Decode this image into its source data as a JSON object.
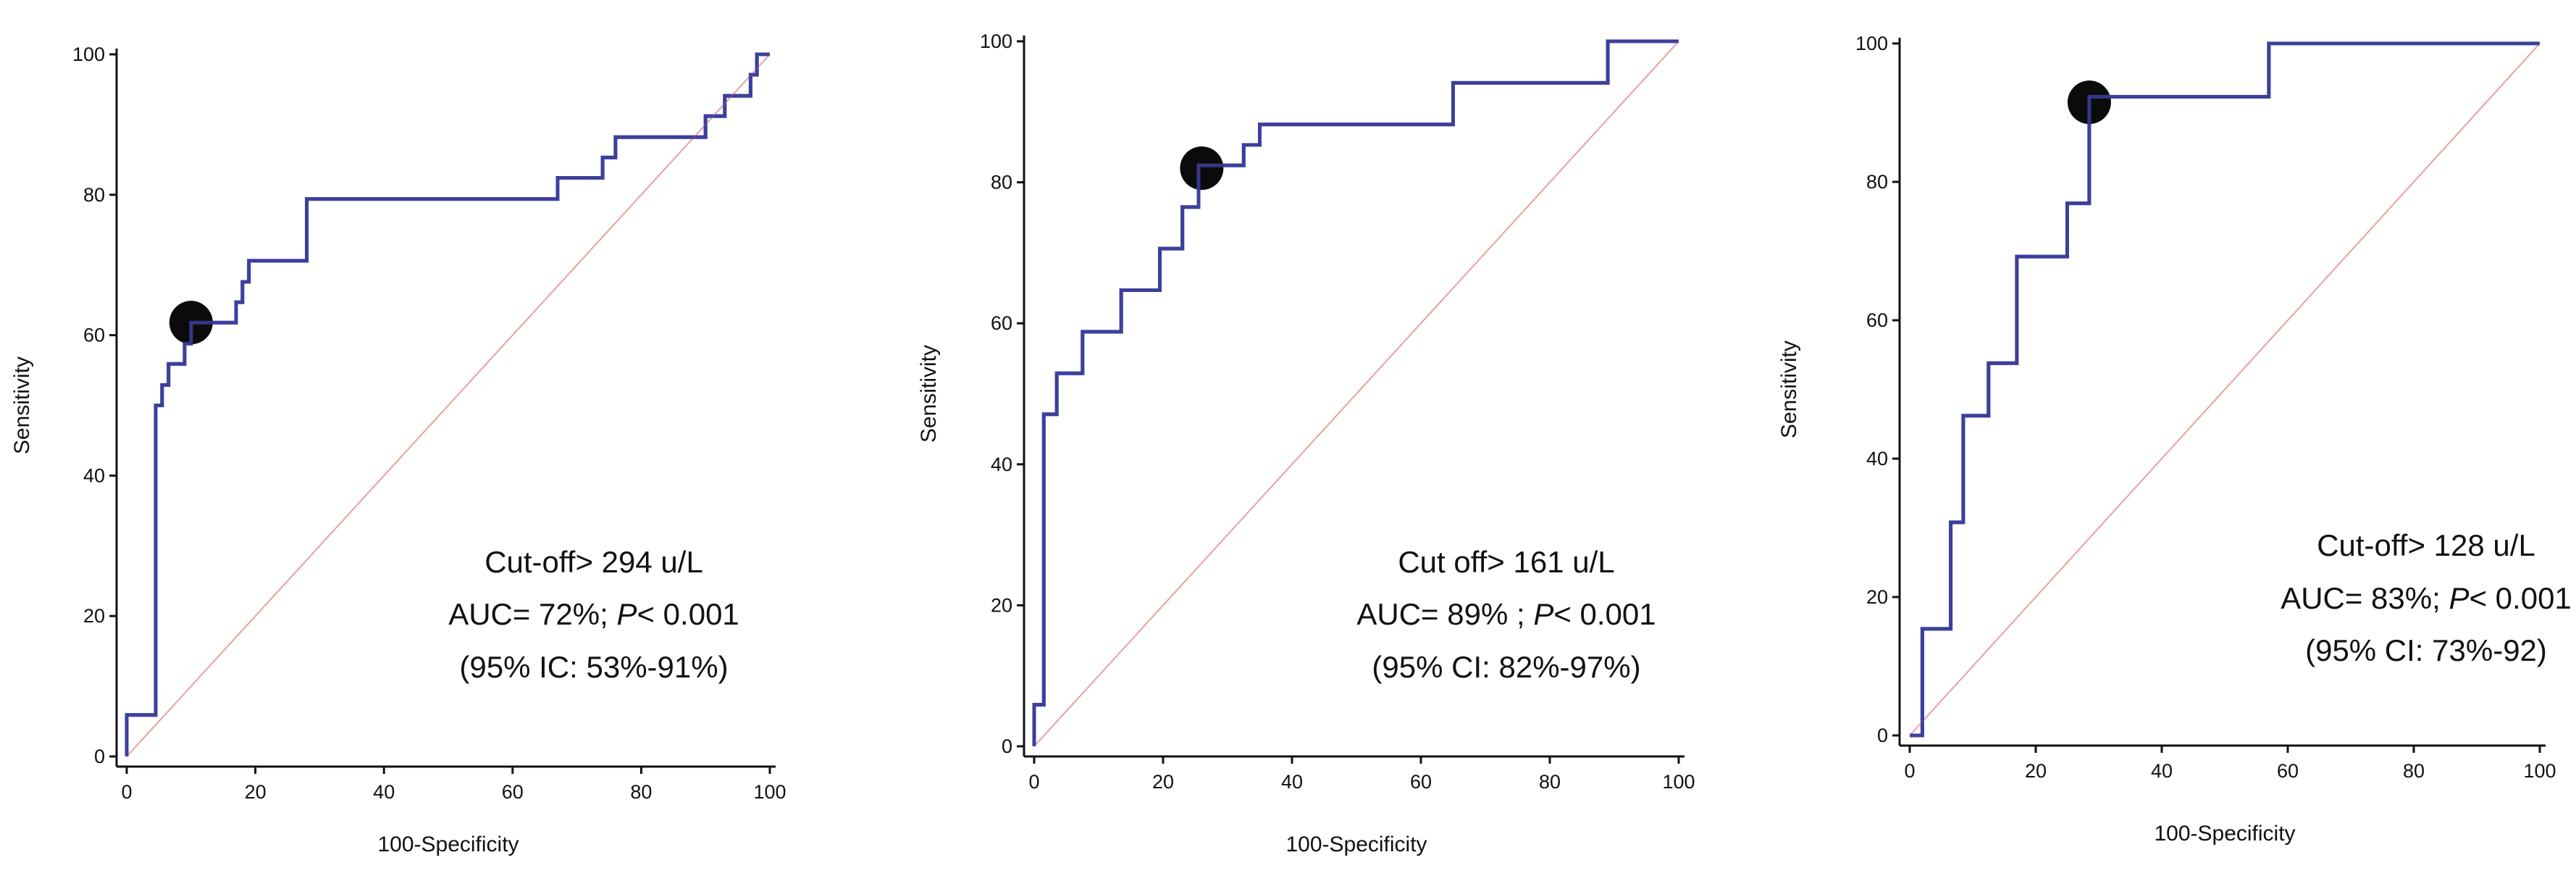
{
  "chart_data": [
    {
      "type": "line",
      "title": "",
      "xlabel": "100-Specificity",
      "ylabel": "Sensitivity",
      "xlim": [
        0,
        100
      ],
      "ylim": [
        0,
        100
      ],
      "x_ticks": [
        "0",
        "20",
        "40",
        "60",
        "80",
        "100"
      ],
      "y_ticks": [
        "0",
        "20",
        "40",
        "60",
        "80",
        "100"
      ],
      "grid": false,
      "series": [
        {
          "name": "ROC curve",
          "color": "#3d3f9c",
          "x": [
            0,
            0,
            4.5,
            4.5,
            5.5,
            5.5,
            6.5,
            6.5,
            9,
            9,
            10,
            10,
            17,
            17,
            18,
            18,
            19,
            19,
            28,
            28,
            67,
            67,
            74,
            74,
            76,
            76,
            90,
            90,
            93,
            93,
            97,
            97,
            98,
            98,
            99,
            99,
            100
          ],
          "y": [
            0,
            5.9,
            5.9,
            50,
            50,
            52.9,
            52.9,
            55.9,
            55.9,
            58.8,
            58.8,
            61.8,
            61.8,
            64.7,
            64.7,
            67.6,
            67.6,
            70.6,
            70.6,
            79.4,
            79.4,
            82.4,
            82.4,
            85.3,
            85.3,
            88.2,
            88.2,
            91.2,
            91.2,
            94.1,
            94.1,
            97.1,
            97.1,
            100,
            100,
            100,
            100
          ]
        },
        {
          "name": "Reference line",
          "color": "#e8a0a0",
          "x": [
            0,
            100
          ],
          "y": [
            0,
            100
          ]
        }
      ],
      "cutoff_point": {
        "x": 10,
        "y": 61.8
      },
      "annotations": [
        "Cut-off> 294 u/L",
        "AUC= 72%; ",
        "P",
        "< 0.001",
        "(95% IC: 53%-91%)"
      ]
    },
    {
      "type": "line",
      "title": "",
      "xlabel": "100-Specificity",
      "ylabel": "Sensitivity",
      "xlim": [
        0,
        100
      ],
      "ylim": [
        0,
        100
      ],
      "x_ticks": [
        "0",
        "20",
        "40",
        "60",
        "80",
        "100"
      ],
      "y_ticks": [
        "0",
        "20",
        "40",
        "60",
        "80",
        "100"
      ],
      "grid": false,
      "series": [
        {
          "name": "ROC curve",
          "color": "#3d3f9c",
          "x": [
            0,
            0,
            1.5,
            1.5,
            3.5,
            3.5,
            7.5,
            7.5,
            13.5,
            13.5,
            19.5,
            19.5,
            23,
            23,
            25.5,
            25.5,
            32.5,
            32.5,
            35,
            35,
            65,
            65,
            89,
            89,
            100
          ],
          "y": [
            0,
            5.9,
            5.9,
            47.1,
            47.1,
            52.9,
            52.9,
            58.8,
            58.8,
            64.7,
            64.7,
            70.6,
            70.6,
            76.5,
            76.5,
            82.4,
            82.4,
            85.3,
            85.3,
            88.2,
            88.2,
            94.1,
            94.1,
            100,
            100
          ]
        },
        {
          "name": "Reference line",
          "color": "#e8a0a0",
          "x": [
            0,
            100
          ],
          "y": [
            0,
            100
          ]
        }
      ],
      "cutoff_point": {
        "x": 26,
        "y": 82
      },
      "annotations": [
        "Cut off> 161 u/L",
        "AUC= 89% ; ",
        "P",
        "< 0.001",
        "(95% CI: 82%-97%)"
      ]
    },
    {
      "type": "line",
      "title": "",
      "xlabel": "100-Specificity",
      "ylabel": "Sensitivity",
      "xlim": [
        0,
        100
      ],
      "ylim": [
        0,
        100
      ],
      "x_ticks": [
        "0",
        "20",
        "40",
        "60",
        "80",
        "100"
      ],
      "y_ticks": [
        "0",
        "20",
        "40",
        "60",
        "80",
        "100"
      ],
      "grid": false,
      "series": [
        {
          "name": "ROC curve",
          "color": "#3d3f9c",
          "x": [
            0,
            2,
            2,
            6.5,
            6.5,
            8.5,
            8.5,
            12.5,
            12.5,
            17,
            17,
            25,
            25,
            28.5,
            28.5,
            57,
            57,
            100
          ],
          "y": [
            0,
            0,
            15.4,
            15.4,
            30.8,
            30.8,
            46.2,
            46.2,
            53.8,
            53.8,
            69.2,
            69.2,
            76.9,
            76.9,
            92.3,
            92.3,
            100,
            100
          ]
        },
        {
          "name": "Reference line",
          "color": "#e8a0a0",
          "x": [
            0,
            100
          ],
          "y": [
            0,
            100
          ]
        }
      ],
      "cutoff_point": {
        "x": 28.5,
        "y": 91.5
      },
      "annotations": [
        "Cut-off> 128 u/L",
        "AUC= 83%; ",
        "P",
        "< 0.001",
        "(95% CI: 73%-92)"
      ]
    }
  ]
}
